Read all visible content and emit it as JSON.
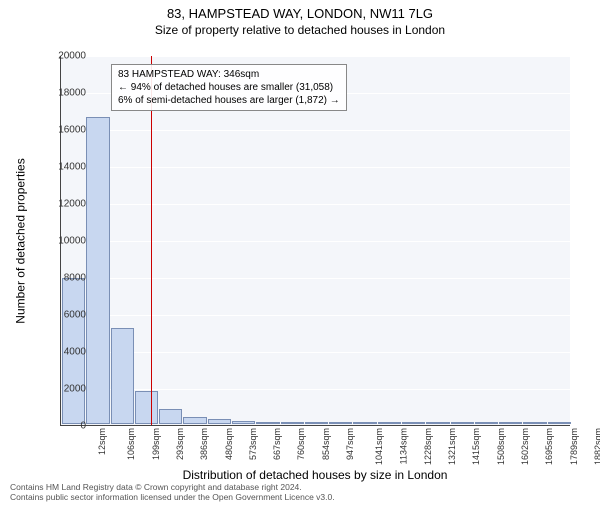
{
  "title": "83, HAMPSTEAD WAY, LONDON, NW11 7LG",
  "subtitle": "Size of property relative to detached houses in London",
  "ylabel": "Number of detached properties",
  "xlabel": "Distribution of detached houses by size in London",
  "footer_line1": "Contains HM Land Registry data © Crown copyright and database right 2024.",
  "footer_line2": "Contains public sector information licensed under the Open Government Licence v3.0.",
  "annotation": {
    "line1": "83 HAMPSTEAD WAY: 346sqm",
    "line2": "← 94% of detached houses are smaller (31,058)",
    "line3": "6% of semi-detached houses are larger (1,872) →"
  },
  "chart": {
    "type": "bar",
    "ylim": [
      0,
      20000
    ],
    "ytick_step": 2000,
    "xmin": 12,
    "xmax": 1900,
    "x_categories": [
      "12sqm",
      "106sqm",
      "199sqm",
      "293sqm",
      "386sqm",
      "480sqm",
      "573sqm",
      "667sqm",
      "760sqm",
      "854sqm",
      "947sqm",
      "1041sqm",
      "1134sqm",
      "1228sqm",
      "1321sqm",
      "1415sqm",
      "1508sqm",
      "1602sqm",
      "1695sqm",
      "1789sqm",
      "1882sqm"
    ],
    "values": [
      7900,
      16600,
      5200,
      1800,
      800,
      400,
      250,
      150,
      100,
      80,
      60,
      50,
      40,
      30,
      25,
      20,
      15,
      12,
      10,
      8,
      6
    ],
    "bar_fill": "#c8d7f0",
    "bar_stroke": "#7a8fb5",
    "background_color": "#f4f6fa",
    "grid_color": "#ffffff",
    "ref_value": 346,
    "ref_color": "#cc0000",
    "title_fontsize": 13,
    "subtitle_fontsize": 12,
    "label_fontsize": 12,
    "tick_fontsize": 10
  }
}
